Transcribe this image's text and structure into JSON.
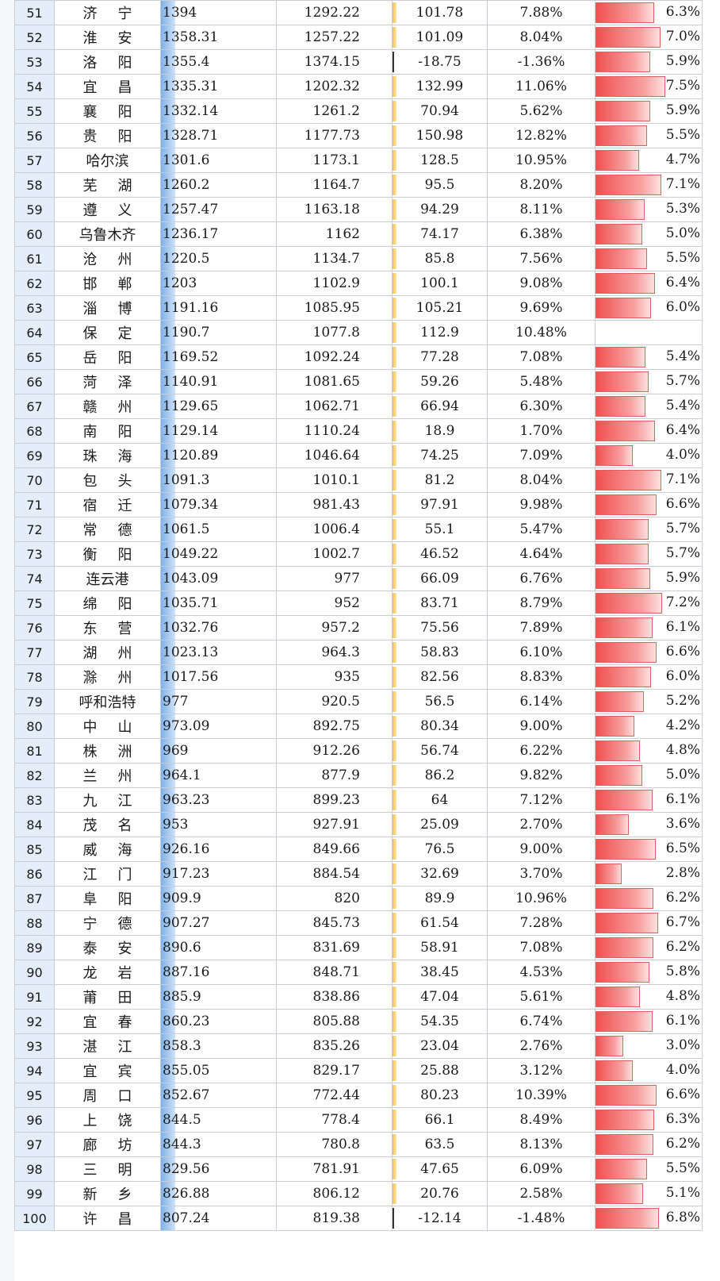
{
  "table": {
    "rows": [
      {
        "rank": "51",
        "city": "济宁",
        "gdp": "1394",
        "prev": "1292.22",
        "increase": "101.78",
        "growth": "7.88%",
        "rate": "6.3%",
        "rate_value": 6.3
      },
      {
        "rank": "52",
        "city": "淮安",
        "gdp": "1358.31",
        "prev": "1257.22",
        "increase": "101.09",
        "growth": "8.04%",
        "rate": "7.0%",
        "rate_value": 7.0
      },
      {
        "rank": "53",
        "city": "洛阳",
        "gdp": "1355.4",
        "prev": "1374.15",
        "increase": "-18.75",
        "growth": "-1.36%",
        "rate": "5.9%",
        "rate_value": 5.9
      },
      {
        "rank": "54",
        "city": "宜昌",
        "gdp": "1335.31",
        "prev": "1202.32",
        "increase": "132.99",
        "growth": "11.06%",
        "rate": "7.5%",
        "rate_value": 7.5
      },
      {
        "rank": "55",
        "city": "襄阳",
        "gdp": "1332.14",
        "prev": "1261.2",
        "increase": "70.94",
        "growth": "5.62%",
        "rate": "5.9%",
        "rate_value": 5.9
      },
      {
        "rank": "56",
        "city": "贵阳",
        "gdp": "1328.71",
        "prev": "1177.73",
        "increase": "150.98",
        "growth": "12.82%",
        "rate": "5.5%",
        "rate_value": 5.5
      },
      {
        "rank": "57",
        "city": "哈尔滨",
        "gdp": "1301.6",
        "prev": "1173.1",
        "increase": "128.5",
        "growth": "10.95%",
        "rate": "4.7%",
        "rate_value": 4.7
      },
      {
        "rank": "58",
        "city": "芜湖",
        "gdp": "1260.2",
        "prev": "1164.7",
        "increase": "95.5",
        "growth": "8.20%",
        "rate": "7.1%",
        "rate_value": 7.1
      },
      {
        "rank": "59",
        "city": "遵义",
        "gdp": "1257.47",
        "prev": "1163.18",
        "increase": "94.29",
        "growth": "8.11%",
        "rate": "5.3%",
        "rate_value": 5.3
      },
      {
        "rank": "60",
        "city": "乌鲁木齐",
        "gdp": "1236.17",
        "prev": "1162",
        "increase": "74.17",
        "growth": "6.38%",
        "rate": "5.0%",
        "rate_value": 5.0
      },
      {
        "rank": "61",
        "city": "沧州",
        "gdp": "1220.5",
        "prev": "1134.7",
        "increase": "85.8",
        "growth": "7.56%",
        "rate": "5.5%",
        "rate_value": 5.5
      },
      {
        "rank": "62",
        "city": "邯郸",
        "gdp": "1203",
        "prev": "1102.9",
        "increase": "100.1",
        "growth": "9.08%",
        "rate": "6.4%",
        "rate_value": 6.4
      },
      {
        "rank": "63",
        "city": "淄博",
        "gdp": "1191.16",
        "prev": "1085.95",
        "increase": "105.21",
        "growth": "9.69%",
        "rate": "6.0%",
        "rate_value": 6.0
      },
      {
        "rank": "64",
        "city": "保定",
        "gdp": "1190.7",
        "prev": "1077.8",
        "increase": "112.9",
        "growth": "10.48%",
        "rate": "",
        "rate_value": 0
      },
      {
        "rank": "65",
        "city": "岳阳",
        "gdp": "1169.52",
        "prev": "1092.24",
        "increase": "77.28",
        "growth": "7.08%",
        "rate": "5.4%",
        "rate_value": 5.4
      },
      {
        "rank": "66",
        "city": "菏泽",
        "gdp": "1140.91",
        "prev": "1081.65",
        "increase": "59.26",
        "growth": "5.48%",
        "rate": "5.7%",
        "rate_value": 5.7
      },
      {
        "rank": "67",
        "city": "赣州",
        "gdp": "1129.65",
        "prev": "1062.71",
        "increase": "66.94",
        "growth": "6.30%",
        "rate": "5.4%",
        "rate_value": 5.4
      },
      {
        "rank": "68",
        "city": "南阳",
        "gdp": "1129.14",
        "prev": "1110.24",
        "increase": "18.9",
        "growth": "1.70%",
        "rate": "6.4%",
        "rate_value": 6.4
      },
      {
        "rank": "69",
        "city": "珠海",
        "gdp": "1120.89",
        "prev": "1046.64",
        "increase": "74.25",
        "growth": "7.09%",
        "rate": "4.0%",
        "rate_value": 4.0
      },
      {
        "rank": "70",
        "city": "包头",
        "gdp": "1091.3",
        "prev": "1010.1",
        "increase": "81.2",
        "growth": "8.04%",
        "rate": "7.1%",
        "rate_value": 7.1
      },
      {
        "rank": "71",
        "city": "宿迁",
        "gdp": "1079.34",
        "prev": "981.43",
        "increase": "97.91",
        "growth": "9.98%",
        "rate": "6.6%",
        "rate_value": 6.6
      },
      {
        "rank": "72",
        "city": "常德",
        "gdp": "1061.5",
        "prev": "1006.4",
        "increase": "55.1",
        "growth": "5.47%",
        "rate": "5.7%",
        "rate_value": 5.7
      },
      {
        "rank": "73",
        "city": "衡阳",
        "gdp": "1049.22",
        "prev": "1002.7",
        "increase": "46.52",
        "growth": "4.64%",
        "rate": "5.7%",
        "rate_value": 5.7
      },
      {
        "rank": "74",
        "city": "连云港",
        "gdp": "1043.09",
        "prev": "977",
        "increase": "66.09",
        "growth": "6.76%",
        "rate": "5.9%",
        "rate_value": 5.9
      },
      {
        "rank": "75",
        "city": "绵阳",
        "gdp": "1035.71",
        "prev": "952",
        "increase": "83.71",
        "growth": "8.79%",
        "rate": "7.2%",
        "rate_value": 7.2
      },
      {
        "rank": "76",
        "city": "东营",
        "gdp": "1032.76",
        "prev": "957.2",
        "increase": "75.56",
        "growth": "7.89%",
        "rate": "6.1%",
        "rate_value": 6.1
      },
      {
        "rank": "77",
        "city": "湖州",
        "gdp": "1023.13",
        "prev": "964.3",
        "increase": "58.83",
        "growth": "6.10%",
        "rate": "6.6%",
        "rate_value": 6.6
      },
      {
        "rank": "78",
        "city": "滁州",
        "gdp": "1017.56",
        "prev": "935",
        "increase": "82.56",
        "growth": "8.83%",
        "rate": "6.0%",
        "rate_value": 6.0
      },
      {
        "rank": "79",
        "city": "呼和浩特",
        "gdp": "977",
        "prev": "920.5",
        "increase": "56.5",
        "growth": "6.14%",
        "rate": "5.2%",
        "rate_value": 5.2
      },
      {
        "rank": "80",
        "city": "中山",
        "gdp": "973.09",
        "prev": "892.75",
        "increase": "80.34",
        "growth": "9.00%",
        "rate": "4.2%",
        "rate_value": 4.2
      },
      {
        "rank": "81",
        "city": "株洲",
        "gdp": "969",
        "prev": "912.26",
        "increase": "56.74",
        "growth": "6.22%",
        "rate": "4.8%",
        "rate_value": 4.8
      },
      {
        "rank": "82",
        "city": "兰州",
        "gdp": "964.1",
        "prev": "877.9",
        "increase": "86.2",
        "growth": "9.82%",
        "rate": "5.0%",
        "rate_value": 5.0
      },
      {
        "rank": "83",
        "city": "九江",
        "gdp": "963.23",
        "prev": "899.23",
        "increase": "64",
        "growth": "7.12%",
        "rate": "6.1%",
        "rate_value": 6.1
      },
      {
        "rank": "84",
        "city": "茂名",
        "gdp": "953",
        "prev": "927.91",
        "increase": "25.09",
        "growth": "2.70%",
        "rate": "3.6%",
        "rate_value": 3.6
      },
      {
        "rank": "85",
        "city": "威海",
        "gdp": "926.16",
        "prev": "849.66",
        "increase": "76.5",
        "growth": "9.00%",
        "rate": "6.5%",
        "rate_value": 6.5
      },
      {
        "rank": "86",
        "city": "江门",
        "gdp": "917.23",
        "prev": "884.54",
        "increase": "32.69",
        "growth": "3.70%",
        "rate": "2.8%",
        "rate_value": 2.8
      },
      {
        "rank": "87",
        "city": "阜阳",
        "gdp": "909.9",
        "prev": "820",
        "increase": "89.9",
        "growth": "10.96%",
        "rate": "6.2%",
        "rate_value": 6.2
      },
      {
        "rank": "88",
        "city": "宁德",
        "gdp": "907.27",
        "prev": "845.73",
        "increase": "61.54",
        "growth": "7.28%",
        "rate": "6.7%",
        "rate_value": 6.7
      },
      {
        "rank": "89",
        "city": "泰安",
        "gdp": "890.6",
        "prev": "831.69",
        "increase": "58.91",
        "growth": "7.08%",
        "rate": "6.2%",
        "rate_value": 6.2
      },
      {
        "rank": "90",
        "city": "龙岩",
        "gdp": "887.16",
        "prev": "848.71",
        "increase": "38.45",
        "growth": "4.53%",
        "rate": "5.8%",
        "rate_value": 5.8
      },
      {
        "rank": "91",
        "city": "莆田",
        "gdp": "885.9",
        "prev": "838.86",
        "increase": "47.04",
        "growth": "5.61%",
        "rate": "4.8%",
        "rate_value": 4.8
      },
      {
        "rank": "92",
        "city": "宜春",
        "gdp": "860.23",
        "prev": "805.88",
        "increase": "54.35",
        "growth": "6.74%",
        "rate": "6.1%",
        "rate_value": 6.1
      },
      {
        "rank": "93",
        "city": "湛江",
        "gdp": "858.3",
        "prev": "835.26",
        "increase": "23.04",
        "growth": "2.76%",
        "rate": "3.0%",
        "rate_value": 3.0
      },
      {
        "rank": "94",
        "city": "宜宾",
        "gdp": "855.05",
        "prev": "829.17",
        "increase": "25.88",
        "growth": "3.12%",
        "rate": "4.0%",
        "rate_value": 4.0
      },
      {
        "rank": "95",
        "city": "周口",
        "gdp": "852.67",
        "prev": "772.44",
        "increase": "80.23",
        "growth": "10.39%",
        "rate": "6.6%",
        "rate_value": 6.6
      },
      {
        "rank": "96",
        "city": "上饶",
        "gdp": "844.5",
        "prev": "778.4",
        "increase": "66.1",
        "growth": "8.49%",
        "rate": "6.3%",
        "rate_value": 6.3
      },
      {
        "rank": "97",
        "city": "廊坊",
        "gdp": "844.3",
        "prev": "780.8",
        "increase": "63.5",
        "growth": "8.13%",
        "rate": "6.2%",
        "rate_value": 6.2
      },
      {
        "rank": "98",
        "city": "三明",
        "gdp": "829.56",
        "prev": "781.91",
        "increase": "47.65",
        "growth": "6.09%",
        "rate": "5.5%",
        "rate_value": 5.5
      },
      {
        "rank": "99",
        "city": "新乡",
        "gdp": "826.88",
        "prev": "806.12",
        "increase": "20.76",
        "growth": "2.58%",
        "rate": "5.1%",
        "rate_value": 5.1
      },
      {
        "rank": "100",
        "city": "许昌",
        "gdp": "807.24",
        "prev": "819.38",
        "increase": "-12.14",
        "growth": "-1.48%",
        "rate": "6.8%",
        "rate_value": 6.8
      }
    ]
  },
  "colors": {
    "rank_fill": "#e4eefb",
    "gdp_bar": "#7fb2e8",
    "increase_bar": "#f1c24a",
    "rate_bar": "#f05050",
    "grid": "#c9ced6"
  }
}
